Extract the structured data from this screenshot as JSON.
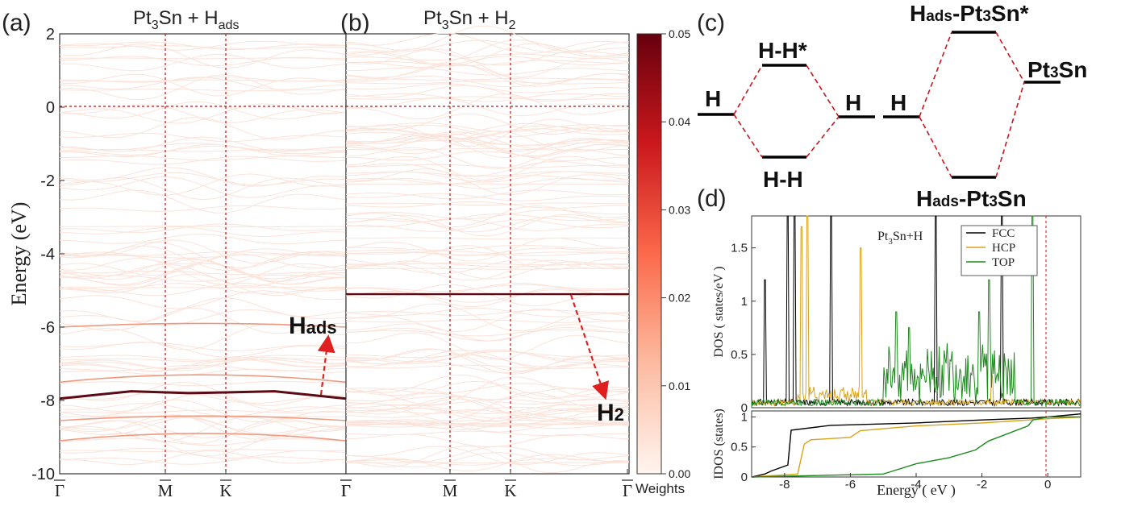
{
  "panels": {
    "a": {
      "letter": "(a)",
      "title": "Pt3Sn + Hads",
      "title_parts": {
        "p1": "Pt",
        "s1": "3",
        "p2": "Sn + H",
        "s2": "ads"
      },
      "annotation": {
        "main": "H",
        "sub": "ads"
      }
    },
    "b": {
      "letter": "(b)",
      "title": "Pt3Sn + H2",
      "title_parts": {
        "p1": "Pt",
        "s1": "3",
        "p2": "Sn + H",
        "s2": "2"
      },
      "annotation": {
        "main": "H",
        "sub": "2"
      }
    },
    "c": {
      "letter": "(c)",
      "levels": {
        "h_left": "H",
        "hh_anti": "H-H*",
        "hh_bond": "H-H",
        "h_right": "H",
        "h_mid": "H",
        "hads_anti": {
          "p1": "H",
          "s1": "ads",
          "p2": "-Pt",
          "s2": "3",
          "p3": "Sn*"
        },
        "pt3sn": {
          "p1": "Pt",
          "s1": "3",
          "p2": "Sn"
        },
        "hads_bond": {
          "p1": "H",
          "s1": "ads",
          "p2": "-Pt",
          "s2": "3",
          "p3": "Sn"
        }
      }
    },
    "d": {
      "letter": "(d)",
      "inset": {
        "p1": "Pt",
        "s1": "3",
        "p2": "Sn+H"
      }
    }
  },
  "colors": {
    "band_light": "#fbe3da",
    "band_mid": "#ee9a80",
    "band_dark": "#5c0a14",
    "dashed_red": "#b01818",
    "arrow_red": "#e02020",
    "fcc": "#000000",
    "hcp": "#d9a21b",
    "top": "#1c8a1c"
  },
  "chart_data": [
    {
      "type": "line",
      "panel": "a",
      "title": "Pt3Sn + Hads",
      "ylabel": "Energy (eV)",
      "ylim": [
        -10,
        2
      ],
      "yticks": [
        "2",
        "0",
        "-2",
        "-4",
        "-6",
        "-8",
        "-10"
      ],
      "xticks": [
        "Γ",
        "M",
        "K",
        "Γ"
      ],
      "highlighted_band": {
        "name": "Hads",
        "x": [
          0,
          0.25,
          0.45,
          0.58,
          0.75,
          1.0
        ],
        "y": [
          -7.95,
          -7.75,
          -7.8,
          -7.78,
          -7.75,
          -7.95
        ]
      }
    },
    {
      "type": "line",
      "panel": "b",
      "title": "Pt3Sn + H2",
      "ylim": [
        -10,
        2
      ],
      "xticks": [
        "Γ",
        "M",
        "K",
        "Γ"
      ],
      "highlighted_band": {
        "name": "H2",
        "x": [
          0,
          1.0
        ],
        "y": [
          -5.1,
          -5.1
        ]
      }
    },
    {
      "type": "heatmap",
      "panel": "colorbar",
      "xlabel": "Weights",
      "range": [
        0.0,
        0.05
      ],
      "ticks": [
        "0.05",
        "0.04",
        "0.03",
        "0.02",
        "0.01",
        "0.00"
      ]
    },
    {
      "type": "line",
      "panel": "d-top",
      "ylabel": "DOS ( states/eV )",
      "xlim": [
        -9,
        1
      ],
      "ylim": [
        0,
        1.8
      ],
      "yticks": [
        "0",
        "0.5",
        "1",
        "1.5"
      ],
      "legend": [
        "FCC",
        "HCP",
        "TOP"
      ],
      "legend_position": "top-right",
      "series": [
        {
          "name": "FCC",
          "peaks": [
            {
              "x": -8.6,
              "y": 1.2
            },
            {
              "x": -7.9,
              "y": 1.8
            },
            {
              "x": -7.7,
              "y": 1.8
            },
            {
              "x": -6.6,
              "y": 1.8
            },
            {
              "x": -3.4,
              "y": 1.8
            },
            {
              "x": -1.4,
              "y": 1.8
            }
          ]
        },
        {
          "name": "HCP",
          "peaks": [
            {
              "x": -7.5,
              "y": 1.7
            },
            {
              "x": -7.3,
              "y": 1.8
            },
            {
              "x": -5.7,
              "y": 1.5
            },
            {
              "x": -1.7,
              "y": 0.3
            }
          ]
        },
        {
          "name": "TOP",
          "peaks": [
            {
              "x": -4.6,
              "y": 0.9
            },
            {
              "x": -4.2,
              "y": 0.75
            },
            {
              "x": -2.1,
              "y": 0.9
            },
            {
              "x": -1.8,
              "y": 1.2
            },
            {
              "x": -0.45,
              "y": 1.8
            }
          ]
        }
      ]
    },
    {
      "type": "line",
      "panel": "d-bottom",
      "ylabel": "IDOS (states)",
      "xlabel": "Energy ( eV )",
      "xlim": [
        -9,
        1
      ],
      "ylim": [
        0,
        1.1
      ],
      "xticks": [
        "-8",
        "-6",
        "-4",
        "-2",
        "0"
      ],
      "yticks": [
        "0",
        "0.5",
        "1"
      ],
      "series": [
        {
          "name": "FCC",
          "x": [
            -9,
            -8.6,
            -8.4,
            -7.9,
            -7.8,
            -6.6,
            -4,
            -2,
            -0.5,
            0,
            1
          ],
          "y": [
            0,
            0.05,
            0.1,
            0.2,
            0.78,
            0.86,
            0.9,
            0.95,
            0.98,
            1.0,
            1.05
          ]
        },
        {
          "name": "HCP",
          "x": [
            -9,
            -7.6,
            -7.4,
            -7.2,
            -6,
            -5.7,
            -4,
            -2,
            0,
            1
          ],
          "y": [
            0,
            0.05,
            0.55,
            0.62,
            0.66,
            0.77,
            0.85,
            0.9,
            0.97,
            1.0
          ]
        },
        {
          "name": "TOP",
          "x": [
            -9,
            -5,
            -4.7,
            -4,
            -3,
            -2.2,
            -1.8,
            -0.6,
            -0.45,
            0,
            1
          ],
          "y": [
            0,
            0.05,
            0.1,
            0.22,
            0.32,
            0.45,
            0.6,
            0.85,
            0.95,
            1.0,
            1.0
          ]
        }
      ]
    }
  ]
}
